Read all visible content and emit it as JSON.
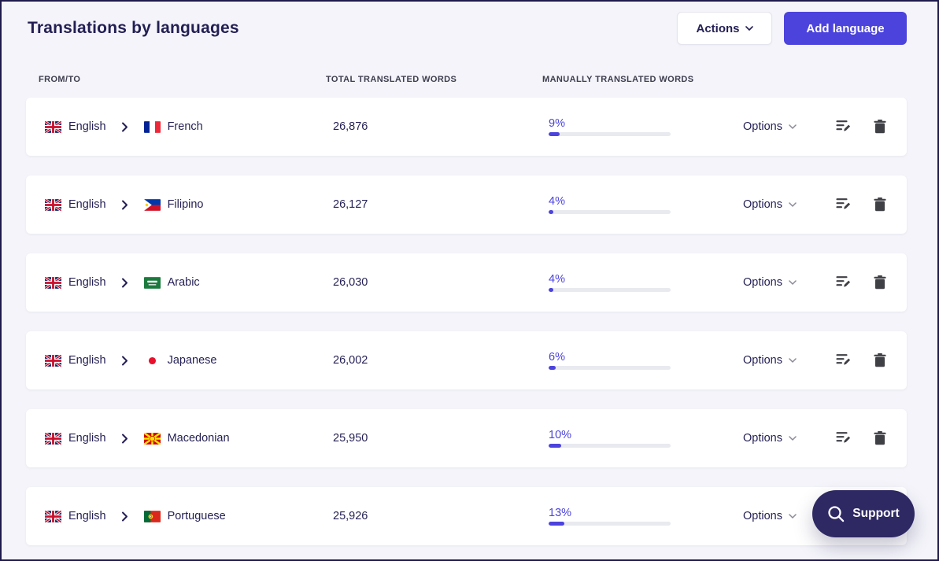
{
  "page": {
    "title": "Translations by languages",
    "actions_button": "Actions",
    "add_language_button": "Add language",
    "support_button": "Support"
  },
  "table": {
    "columns": [
      "From/to",
      "Total translated words",
      "Manually translated words"
    ],
    "options_label": "Options",
    "rows": [
      {
        "from": "English",
        "from_flag": "uk-flag-icon",
        "to": "French",
        "to_flag": "france-flag-icon",
        "total_translated_words": "26,876",
        "manual_percent": 9,
        "manual_percent_label": "9%"
      },
      {
        "from": "English",
        "from_flag": "uk-flag-icon",
        "to": "Filipino",
        "to_flag": "philippines-flag-icon",
        "total_translated_words": "26,127",
        "manual_percent": 4,
        "manual_percent_label": "4%"
      },
      {
        "from": "English",
        "from_flag": "uk-flag-icon",
        "to": "Arabic",
        "to_flag": "saudi-arabia-flag-icon",
        "total_translated_words": "26,030",
        "manual_percent": 4,
        "manual_percent_label": "4%"
      },
      {
        "from": "English",
        "from_flag": "uk-flag-icon",
        "to": "Japanese",
        "to_flag": "japan-flag-icon",
        "total_translated_words": "26,002",
        "manual_percent": 6,
        "manual_percent_label": "6%"
      },
      {
        "from": "English",
        "from_flag": "uk-flag-icon",
        "to": "Macedonian",
        "to_flag": "macedonia-flag-icon",
        "total_translated_words": "25,950",
        "manual_percent": 10,
        "manual_percent_label": "10%"
      },
      {
        "from": "English",
        "from_flag": "uk-flag-icon",
        "to": "Portuguese",
        "to_flag": "portugal-flag-icon",
        "total_translated_words": "25,926",
        "manual_percent": 13,
        "manual_percent_label": "13%"
      }
    ]
  },
  "colors": {
    "accent": "#4c43dd",
    "title_text": "#231f54",
    "support_background": "#2e2963",
    "page_background": "#f4f4fa",
    "progress_track": "#e9e9f0"
  }
}
